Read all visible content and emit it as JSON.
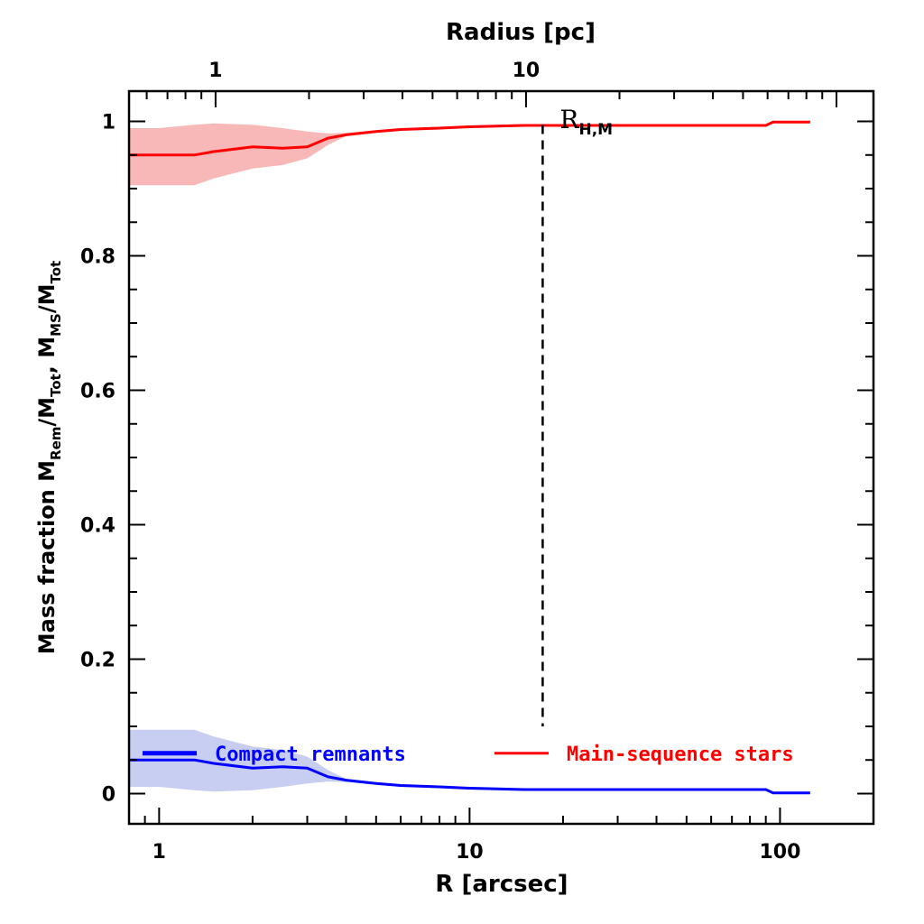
{
  "chart_data": {
    "type": "line",
    "xscale": "log",
    "xlim": [
      0.8,
      200
    ],
    "ylim": [
      -0.045,
      1.045
    ],
    "xlabel": "R [arcsec]",
    "ylabel": "Mass fraction  M_Rem/M_Tot, M_MS/M_Tot",
    "ylabel_parts": {
      "prefix": "Mass fraction  M",
      "sub1": "Rem",
      "mid1": "/M",
      "sub2": "Tot",
      "mid2": ",  M",
      "sub3": "MS",
      "mid3": "/M",
      "sub4": "Tot"
    },
    "x_ticks": [
      1,
      10,
      100
    ],
    "x_tick_labels": [
      "1",
      "10",
      "100"
    ],
    "y_ticks": [
      0,
      0.2,
      0.4,
      0.6,
      0.8,
      1
    ],
    "y_tick_labels": [
      "0",
      "0.2",
      "0.4",
      "0.6",
      "0.8",
      "1"
    ],
    "top_axis": {
      "label": "Radius [pc]",
      "ticks_arcsec": [
        1.52,
        15.2
      ],
      "tick_labels": [
        "1",
        "10"
      ]
    },
    "vline": {
      "x": 17.2,
      "label_main": "R",
      "label_sub": "H,M"
    },
    "series": [
      {
        "name": "Main-sequence stars",
        "color": "#ff0000",
        "band_color": "#f8b8b8",
        "x": [
          0.8,
          1.0,
          1.3,
          1.5,
          2.0,
          2.5,
          3.0,
          3.5,
          4.0,
          5.0,
          6.0,
          8.0,
          10.0,
          15.0,
          20.0,
          30.0,
          50.0,
          70.0,
          90.0,
          95.0,
          125.0
        ],
        "y": [
          0.95,
          0.95,
          0.95,
          0.955,
          0.962,
          0.96,
          0.962,
          0.975,
          0.98,
          0.985,
          0.988,
          0.99,
          0.992,
          0.994,
          0.994,
          0.994,
          0.994,
          0.994,
          0.994,
          0.999,
          0.999
        ],
        "lower": [
          0.905,
          0.905,
          0.905,
          0.915,
          0.93,
          0.935,
          0.945,
          0.965,
          0.978,
          0.983,
          0.986,
          0.988,
          0.99,
          0.992,
          0.992,
          0.992,
          0.992,
          0.992,
          0.992,
          0.997,
          0.997
        ],
        "upper": [
          0.99,
          0.99,
          0.995,
          0.997,
          0.995,
          0.99,
          0.985,
          0.982,
          0.983,
          0.987,
          0.99,
          0.992,
          0.994,
          0.996,
          0.996,
          0.996,
          0.996,
          0.996,
          0.996,
          1.0,
          1.0
        ]
      },
      {
        "name": "Compact remnants",
        "color": "#0000ff",
        "band_color": "#c8cdf2",
        "x": [
          0.8,
          1.0,
          1.3,
          1.5,
          2.0,
          2.5,
          3.0,
          3.5,
          4.0,
          5.0,
          6.0,
          8.0,
          10.0,
          15.0,
          20.0,
          30.0,
          50.0,
          70.0,
          90.0,
          95.0,
          125.0
        ],
        "y": [
          0.05,
          0.05,
          0.05,
          0.045,
          0.038,
          0.04,
          0.038,
          0.025,
          0.02,
          0.015,
          0.012,
          0.01,
          0.008,
          0.006,
          0.006,
          0.006,
          0.006,
          0.006,
          0.006,
          0.001,
          0.001
        ],
        "lower": [
          0.01,
          0.01,
          0.005,
          0.003,
          0.005,
          0.01,
          0.015,
          0.018,
          0.017,
          0.013,
          0.01,
          0.008,
          0.006,
          0.004,
          0.004,
          0.004,
          0.004,
          0.004,
          0.004,
          0.0,
          0.0
        ],
        "upper": [
          0.095,
          0.095,
          0.095,
          0.085,
          0.07,
          0.065,
          0.055,
          0.035,
          0.022,
          0.017,
          0.014,
          0.012,
          0.01,
          0.008,
          0.008,
          0.008,
          0.008,
          0.008,
          0.008,
          0.003,
          0.003
        ]
      }
    ],
    "legend": [
      {
        "label": "Compact remnants",
        "color": "#0000ff"
      },
      {
        "label": "Main-sequence stars",
        "color": "#ff0000"
      }
    ]
  }
}
